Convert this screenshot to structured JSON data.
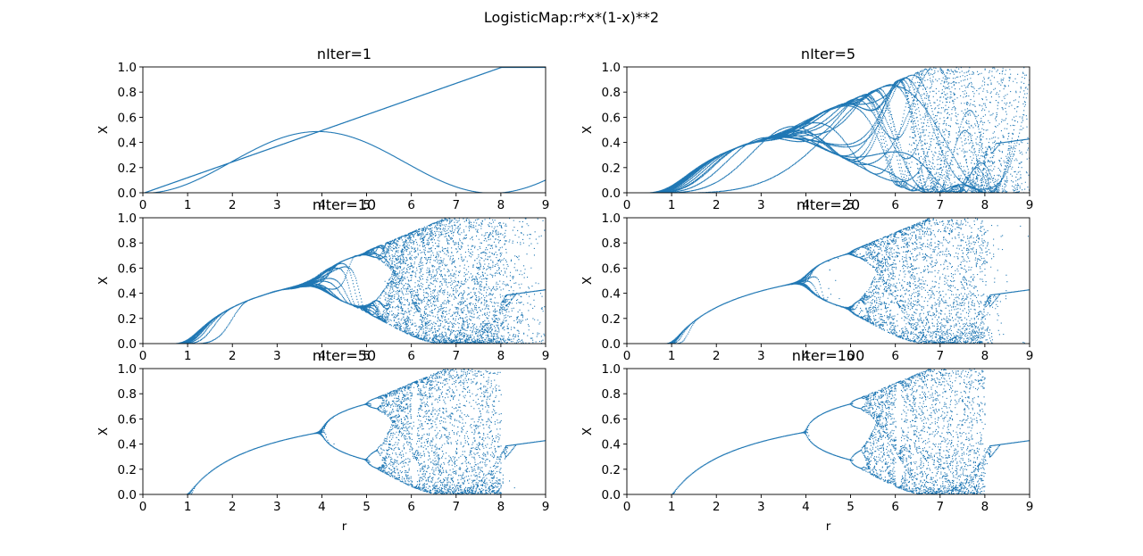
{
  "suptitle": "LogisticMap:r*x*(1-x)**2",
  "chart_data": [
    {
      "type": "scatter",
      "title": "nIter=1",
      "iterations": 1,
      "function": "r*x*(1-x)**2",
      "xlabel": "",
      "ylabel": "X",
      "xlim": [
        0,
        9
      ],
      "ylim": [
        0,
        1
      ],
      "xticks": [
        "0",
        "1",
        "2",
        "3",
        "4",
        "5",
        "6",
        "7",
        "8",
        "9"
      ],
      "yticks": [
        "0.0",
        "0.2",
        "0.4",
        "0.6",
        "0.8",
        "1.0"
      ],
      "grid": false,
      "color": "#1f77b4"
    },
    {
      "type": "scatter",
      "title": "nIter=5",
      "iterations": 5,
      "function": "r*x*(1-x)**2",
      "xlabel": "",
      "ylabel": "X",
      "xlim": [
        0,
        9
      ],
      "ylim": [
        0,
        1
      ],
      "xticks": [
        "0",
        "1",
        "2",
        "3",
        "4",
        "5",
        "6",
        "7",
        "8",
        "9"
      ],
      "yticks": [
        "0.0",
        "0.2",
        "0.4",
        "0.6",
        "0.8",
        "1.0"
      ],
      "grid": false,
      "color": "#1f77b4"
    },
    {
      "type": "scatter",
      "title": "nIter=10",
      "iterations": 10,
      "function": "r*x*(1-x)**2",
      "xlabel": "",
      "ylabel": "X",
      "xlim": [
        0,
        9
      ],
      "ylim": [
        0,
        1
      ],
      "xticks": [
        "0",
        "1",
        "2",
        "3",
        "4",
        "5",
        "6",
        "7",
        "8",
        "9"
      ],
      "yticks": [
        "0.0",
        "0.2",
        "0.4",
        "0.6",
        "0.8",
        "1.0"
      ],
      "grid": false,
      "color": "#1f77b4"
    },
    {
      "type": "scatter",
      "title": "nIter=20",
      "iterations": 20,
      "function": "r*x*(1-x)**2",
      "xlabel": "",
      "ylabel": "X",
      "xlim": [
        0,
        9
      ],
      "ylim": [
        0,
        1
      ],
      "xticks": [
        "0",
        "1",
        "2",
        "3",
        "4",
        "5",
        "6",
        "7",
        "8",
        "9"
      ],
      "yticks": [
        "0.0",
        "0.2",
        "0.4",
        "0.6",
        "0.8",
        "1.0"
      ],
      "grid": false,
      "color": "#1f77b4"
    },
    {
      "type": "scatter",
      "title": "nIter=50",
      "iterations": 50,
      "function": "r*x*(1-x)**2",
      "xlabel": "r",
      "ylabel": "X",
      "xlim": [
        0,
        9
      ],
      "ylim": [
        0,
        1
      ],
      "xticks": [
        "0",
        "1",
        "2",
        "3",
        "4",
        "5",
        "6",
        "7",
        "8",
        "9"
      ],
      "yticks": [
        "0.0",
        "0.2",
        "0.4",
        "0.6",
        "0.8",
        "1.0"
      ],
      "grid": false,
      "color": "#1f77b4"
    },
    {
      "type": "scatter",
      "title": "nIter=100",
      "iterations": 100,
      "function": "r*x*(1-x)**2",
      "xlabel": "r",
      "ylabel": "X",
      "xlim": [
        0,
        9
      ],
      "ylim": [
        0,
        1
      ],
      "xticks": [
        "0",
        "1",
        "2",
        "3",
        "4",
        "5",
        "6",
        "7",
        "8",
        "9"
      ],
      "yticks": [
        "0.0",
        "0.2",
        "0.4",
        "0.6",
        "0.8",
        "1.0"
      ],
      "grid": false,
      "color": "#1f77b4"
    }
  ]
}
